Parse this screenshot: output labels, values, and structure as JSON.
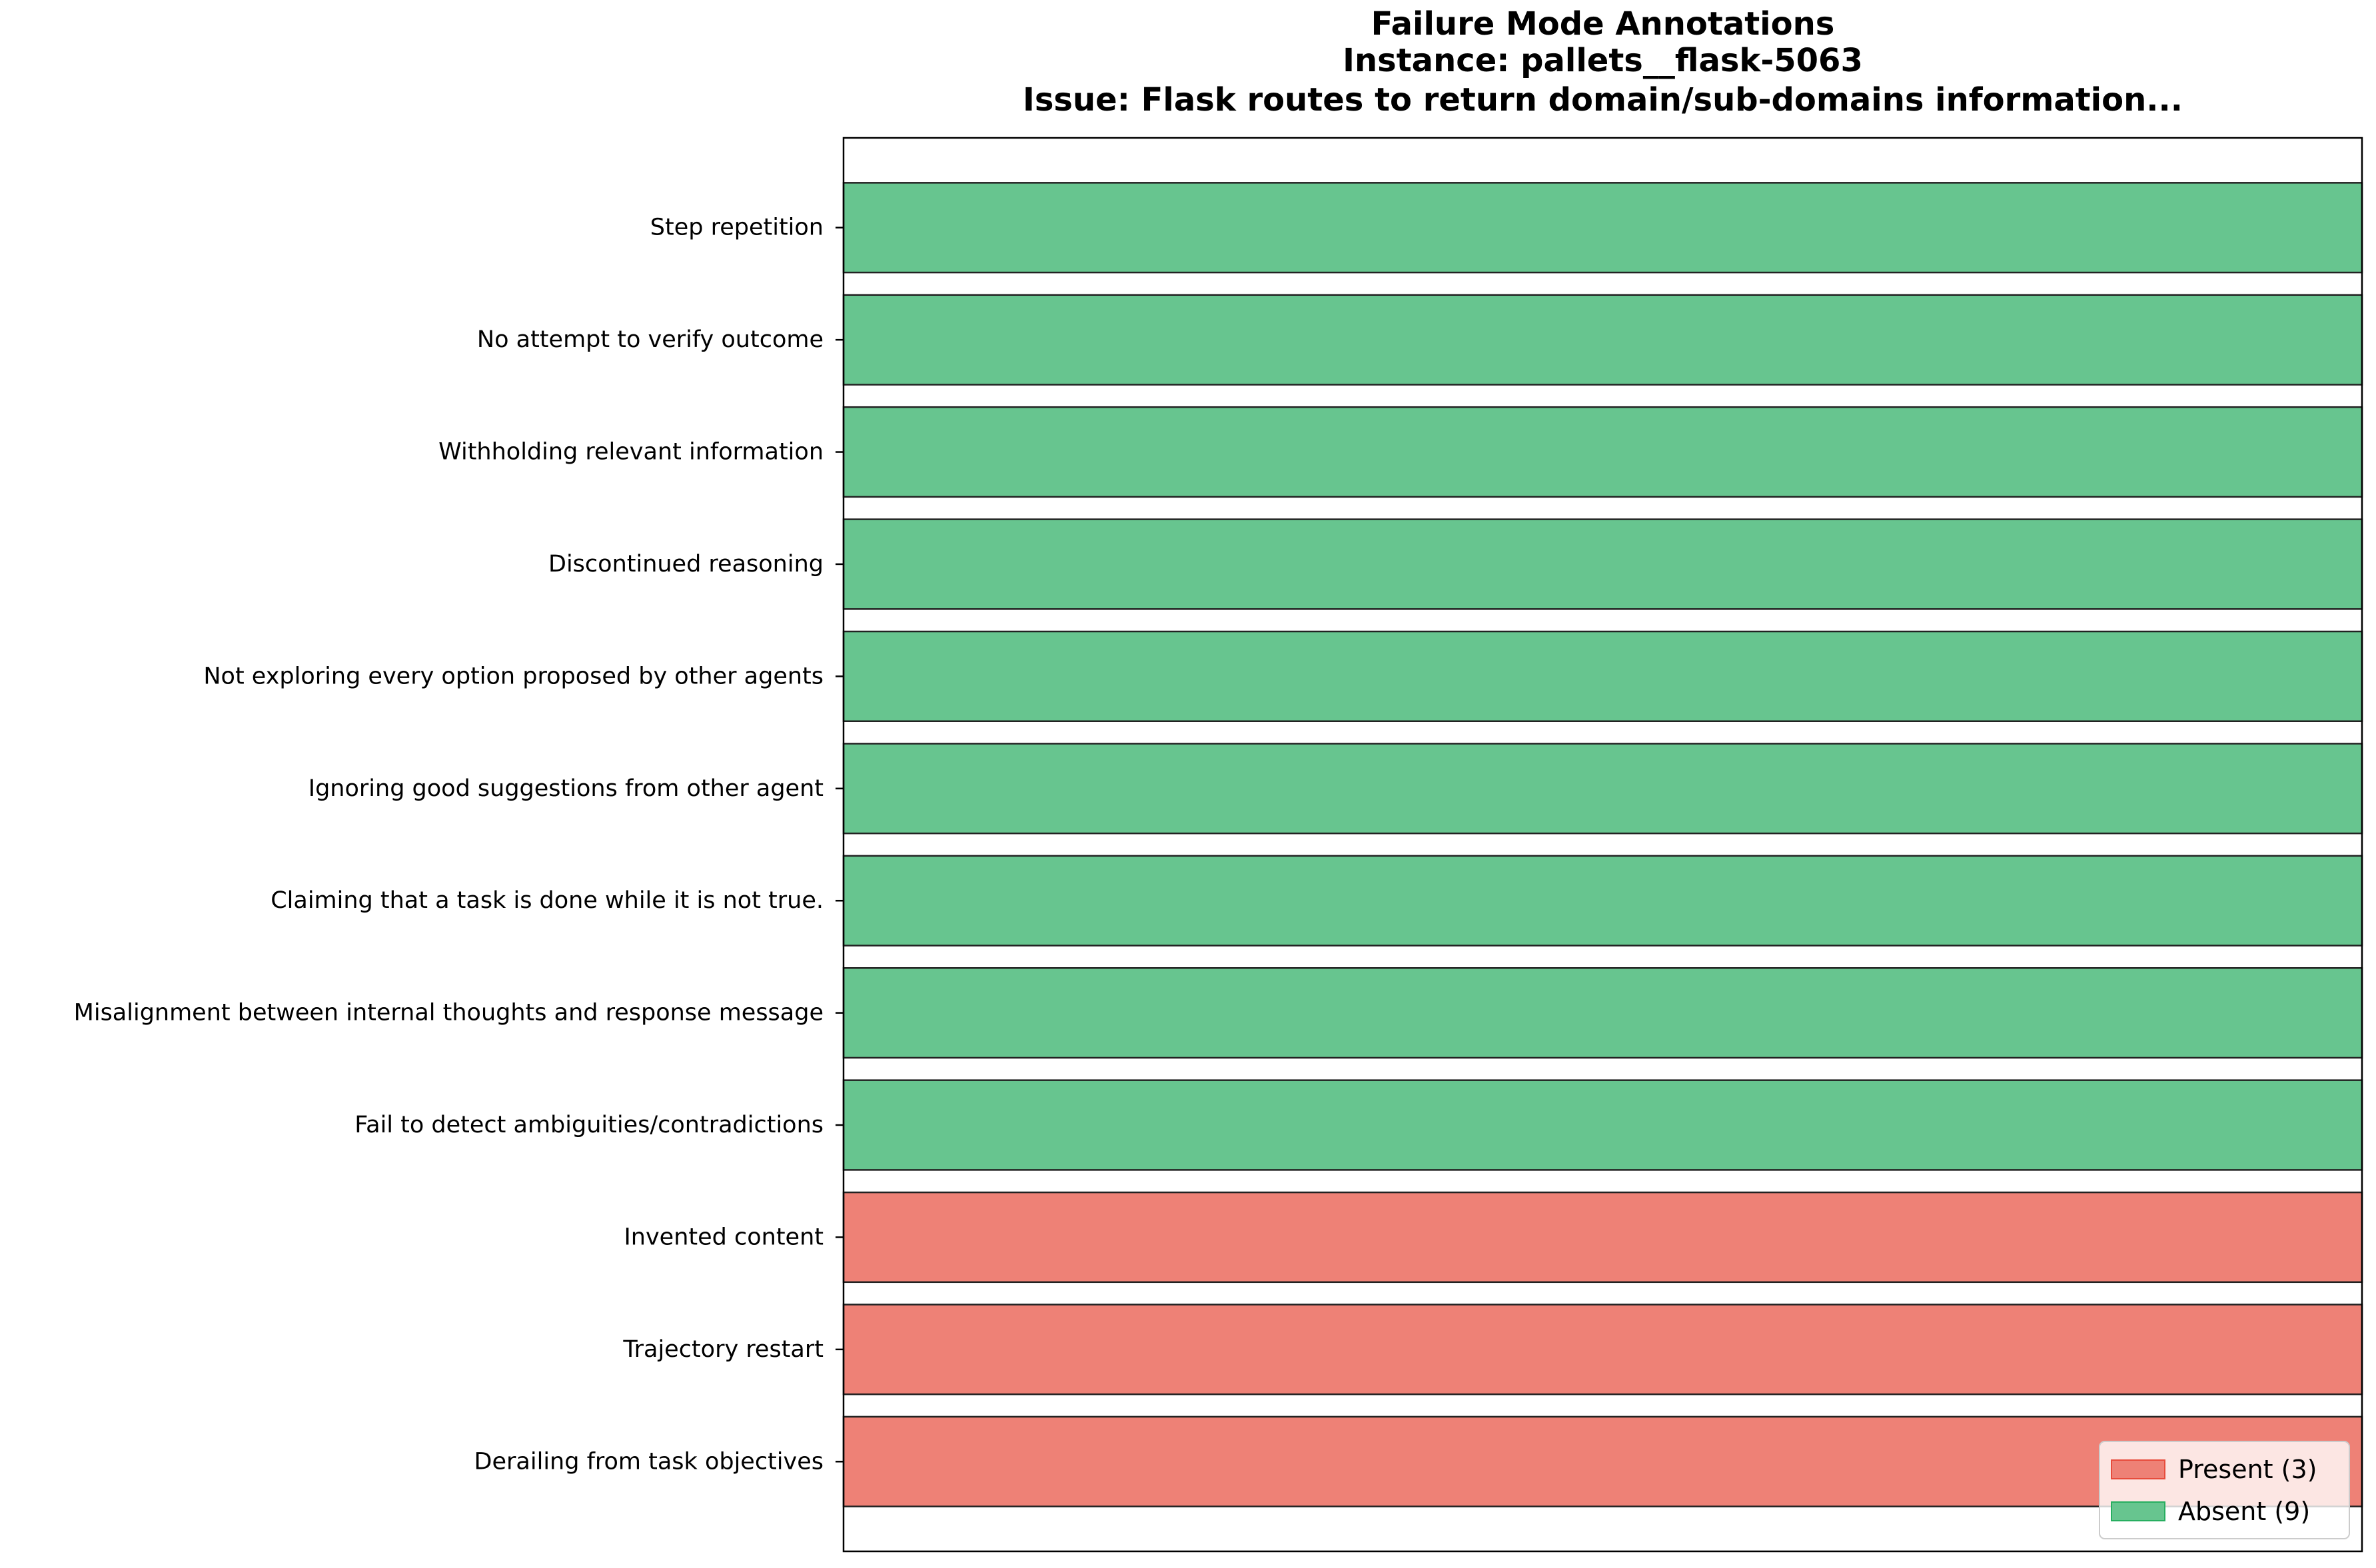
{
  "chart_data": {
    "type": "bar",
    "orientation": "horizontal",
    "title": [
      "Failure Mode Annotations",
      "Instance: pallets__flask-5063",
      "Issue: Flask routes to return domain/sub-domains information..."
    ],
    "categories": [
      "Step repetition",
      "No attempt to verify outcome",
      "Withholding relevant information",
      "Discontinued reasoning",
      "Not exploring every option proposed by other agents",
      "Ignoring good suggestions from other agent",
      "Claiming that a task is done while it is not true.",
      "Misalignment between internal thoughts and response message",
      "Fail to detect ambiguities/contradictions",
      "Invented content",
      "Trajectory restart",
      "Derailing from task objectives"
    ],
    "values": [
      1,
      1,
      1,
      1,
      1,
      1,
      1,
      1,
      1,
      1,
      1,
      1
    ],
    "status": [
      "absent",
      "absent",
      "absent",
      "absent",
      "absent",
      "absent",
      "absent",
      "absent",
      "absent",
      "present",
      "present",
      "present"
    ],
    "xlim": [
      0,
      1
    ],
    "grid": false,
    "colors": {
      "present": "#ee8176",
      "absent": "#67c58f",
      "edge": "#222222"
    },
    "legend": {
      "placement": "bottom-right",
      "entries": [
        {
          "key": "present",
          "label": "Present (3)",
          "color": "#ee8176",
          "edge": "#e74c3c"
        },
        {
          "key": "absent",
          "label": "Absent (9)",
          "color": "#67c58f",
          "edge": "#27ae60"
        }
      ]
    }
  }
}
